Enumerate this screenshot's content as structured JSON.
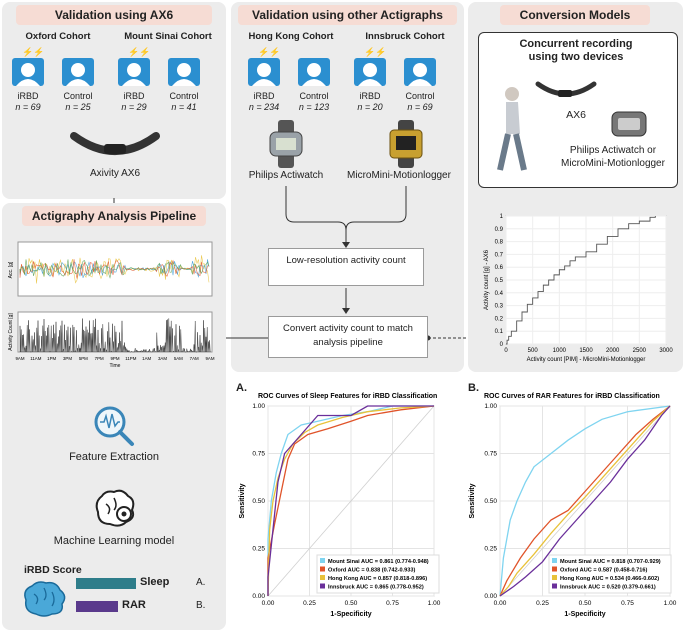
{
  "validation_ax6": {
    "header": "Validation using AX6",
    "oxford": {
      "title": "Oxford Cohort",
      "irbd_label": "iRBD",
      "irbd_n": "n = 69",
      "control_label": "Control",
      "control_n": "n = 25"
    },
    "mount_sinai": {
      "title": "Mount Sinai Cohort",
      "irbd_label": "iRBD",
      "irbd_n": "n = 29",
      "control_label": "Control",
      "control_n": "n = 41"
    },
    "device": "Axivity AX6"
  },
  "validation_other": {
    "header": "Validation using other Actigraphs",
    "hong_kong": {
      "title": "Hong Kong Cohort",
      "irbd_label": "iRBD",
      "irbd_n": "n = 234",
      "control_label": "Control",
      "control_n": "n = 123"
    },
    "innsbruck": {
      "title": "Innsbruck Cohort",
      "irbd_label": "iRBD",
      "irbd_n": "n = 20",
      "control_label": "Control",
      "control_n": "n = 69"
    },
    "device_left": "Philips Actiwatch",
    "device_right": "MicroMini-Motionlogger",
    "step1": "Low-resolution activity count",
    "step2": "Convert activity count to match analysis pipeline"
  },
  "conversion": {
    "header": "Conversion Models",
    "box_title": "Concurrent recording using two devices",
    "device1": "AX6",
    "device2": "Philips Actiwatch or MicroMini-Motionlogger",
    "plot": {
      "ylabel": "Activity count [g] - AX6",
      "xlabel": "Activity count [PIM] - MicroMini-Motionlogger",
      "xticks": [
        "0",
        "500",
        "1000",
        "1500",
        "2000",
        "2500",
        "3000"
      ],
      "yticks": [
        "0",
        "0.1",
        "0.2",
        "0.3",
        "0.4",
        "0.5",
        "0.6",
        "0.7",
        "0.8",
        "0.9",
        "1"
      ]
    }
  },
  "pipeline": {
    "header": "Actigraphy Analysis Pipeline",
    "acc_label": "Acc. [g]",
    "count_label": "Activity Count [g]",
    "time_label": "Time",
    "time_ticks": [
      "9AM",
      "11AM",
      "1PM",
      "3PM",
      "5PM",
      "7PM",
      "9PM",
      "11PM",
      "1AM",
      "3AM",
      "5AM",
      "7AM",
      "9AM"
    ],
    "feature_extraction": "Feature Extraction",
    "ml_model": "Machine Learning model",
    "score_title": "iRBD Score",
    "sleep_label": "Sleep",
    "rar_label": "RAR",
    "arrow_a": "A.",
    "arrow_b": "B.",
    "colors": {
      "sleep_bar": "#2e7d8a",
      "rar_bar": "#5a3a8c"
    }
  },
  "roc": {
    "colors": {
      "mount_sinai": "#7fd4f0",
      "oxford": "#e0542a",
      "hong_kong": "#e8c23a",
      "innsbruck": "#6a2f9a"
    },
    "ticks": [
      "0.00",
      "0.25",
      "0.50",
      "0.75",
      "1.00"
    ],
    "a": {
      "label": "A.",
      "title": "ROC Curves of Sleep Features for iRBD Classification",
      "xlabel": "1-Specificity",
      "ylabel": "Sensitivity",
      "legend": [
        "Mount Sinai AUC = 0.861 (0.774-0.948)",
        "Oxford AUC = 0.838 (0.742-0.933)",
        "Hong Kong AUC = 0.857 (0.818-0.896)",
        "Innsbruck AUC = 0.865 (0.778-0.952)"
      ]
    },
    "b": {
      "label": "B.",
      "title": "ROC Curves of RAR Features for iRBD Classification",
      "xlabel": "1-Specificity",
      "ylabel": "Sensitivity",
      "legend": [
        "Mount Sinai AUC = 0.818 (0.707-0.929)",
        "Oxford AUC = 0.587 (0.458-0.716)",
        "Hong Kong AUC = 0.534 (0.466-0.602)",
        "Innsbruck AUC = 0.520 (0.379-0.661)"
      ]
    }
  },
  "chart_data": [
    {
      "type": "line",
      "title": "ROC Curves of Sleep Features for iRBD Classification",
      "xlabel": "1-Specificity",
      "ylabel": "Sensitivity",
      "xlim": [
        0,
        1
      ],
      "ylim": [
        0,
        1
      ],
      "grid": true,
      "legend": "bottom-right",
      "series": [
        {
          "name": "Mount Sinai AUC = 0.861 (0.774-0.948)",
          "color": "#7fd4f0",
          "x": [
            0,
            0,
            0.02,
            0.05,
            0.08,
            0.12,
            0.2,
            0.3,
            0.45,
            0.6,
            0.75,
            1
          ],
          "y": [
            0,
            0.3,
            0.5,
            0.65,
            0.75,
            0.85,
            0.9,
            0.92,
            0.95,
            0.97,
            1,
            1
          ]
        },
        {
          "name": "Oxford AUC = 0.838 (0.742-0.933)",
          "color": "#e0542a",
          "x": [
            0,
            0,
            0.04,
            0.08,
            0.12,
            0.16,
            0.24,
            0.36,
            0.5,
            0.6,
            0.8,
            1
          ],
          "y": [
            0,
            0.2,
            0.38,
            0.55,
            0.72,
            0.8,
            0.85,
            0.88,
            0.92,
            0.95,
            0.98,
            1
          ]
        },
        {
          "name": "Hong Kong AUC = 0.857 (0.818-0.896)",
          "color": "#e8c23a",
          "x": [
            0,
            0.01,
            0.03,
            0.06,
            0.1,
            0.15,
            0.22,
            0.3,
            0.45,
            0.6,
            0.8,
            1
          ],
          "y": [
            0,
            0.35,
            0.5,
            0.62,
            0.72,
            0.8,
            0.86,
            0.9,
            0.94,
            0.97,
            0.99,
            1
          ]
        },
        {
          "name": "Innsbruck AUC = 0.865 (0.778-0.952)",
          "color": "#6a2f9a",
          "x": [
            0,
            0,
            0.03,
            0.06,
            0.1,
            0.2,
            0.3,
            0.4,
            0.5,
            0.6,
            0.8,
            1
          ],
          "y": [
            0,
            0.1,
            0.35,
            0.6,
            0.75,
            0.85,
            0.95,
            0.95,
            0.95,
            1,
            1,
            1
          ]
        }
      ]
    },
    {
      "type": "line",
      "title": "ROC Curves of RAR Features for iRBD Classification",
      "xlabel": "1-Specificity",
      "ylabel": "Sensitivity",
      "xlim": [
        0,
        1
      ],
      "ylim": [
        0,
        1
      ],
      "grid": true,
      "legend": "bottom-right",
      "series": [
        {
          "name": "Mount Sinai AUC = 0.818 (0.707-0.929)",
          "color": "#7fd4f0",
          "x": [
            0,
            0.02,
            0.06,
            0.1,
            0.15,
            0.2,
            0.3,
            0.4,
            0.5,
            0.6,
            0.75,
            1
          ],
          "y": [
            0,
            0.2,
            0.4,
            0.5,
            0.6,
            0.68,
            0.75,
            0.82,
            0.88,
            0.93,
            0.97,
            1
          ]
        },
        {
          "name": "Oxford AUC = 0.587 (0.458-0.716)",
          "color": "#e0542a",
          "x": [
            0,
            0.04,
            0.12,
            0.2,
            0.3,
            0.4,
            0.5,
            0.6,
            0.7,
            0.8,
            0.9,
            1
          ],
          "y": [
            0,
            0.08,
            0.2,
            0.3,
            0.4,
            0.45,
            0.55,
            0.65,
            0.75,
            0.85,
            0.93,
            1
          ]
        },
        {
          "name": "Hong Kong AUC = 0.534 (0.466-0.602)",
          "color": "#e8c23a",
          "x": [
            0,
            0.05,
            0.1,
            0.2,
            0.3,
            0.4,
            0.5,
            0.6,
            0.7,
            0.8,
            0.9,
            1
          ],
          "y": [
            0,
            0.05,
            0.12,
            0.22,
            0.33,
            0.43,
            0.52,
            0.62,
            0.72,
            0.82,
            0.92,
            1
          ]
        },
        {
          "name": "Innsbruck AUC = 0.520 (0.379-0.661)",
          "color": "#6a2f9a",
          "x": [
            0,
            0.08,
            0.15,
            0.25,
            0.35,
            0.45,
            0.55,
            0.65,
            0.75,
            0.85,
            0.95,
            1
          ],
          "y": [
            0,
            0.05,
            0.1,
            0.18,
            0.3,
            0.4,
            0.5,
            0.6,
            0.72,
            0.82,
            0.95,
            1
          ]
        }
      ]
    },
    {
      "type": "line",
      "xlabel": "Activity count [PIM] - MicroMini-Motionlogger",
      "ylabel": "Activity count [g] - AX6",
      "xlim": [
        0,
        3000
      ],
      "ylim": [
        0,
        1
      ],
      "grid": true,
      "series": [
        {
          "color": "#555555",
          "x": [
            0,
            20,
            50,
            100,
            200,
            300,
            400,
            500,
            600,
            700,
            800,
            900,
            1000,
            1100,
            1200,
            1300,
            1500,
            1700,
            1900,
            2100,
            2300,
            2500,
            2700,
            2800
          ],
          "y": [
            0,
            0.03,
            0.06,
            0.1,
            0.18,
            0.25,
            0.31,
            0.36,
            0.41,
            0.46,
            0.5,
            0.54,
            0.58,
            0.61,
            0.65,
            0.68,
            0.72,
            0.78,
            0.84,
            0.9,
            0.94,
            0.96,
            0.99,
            1
          ]
        }
      ]
    }
  ]
}
